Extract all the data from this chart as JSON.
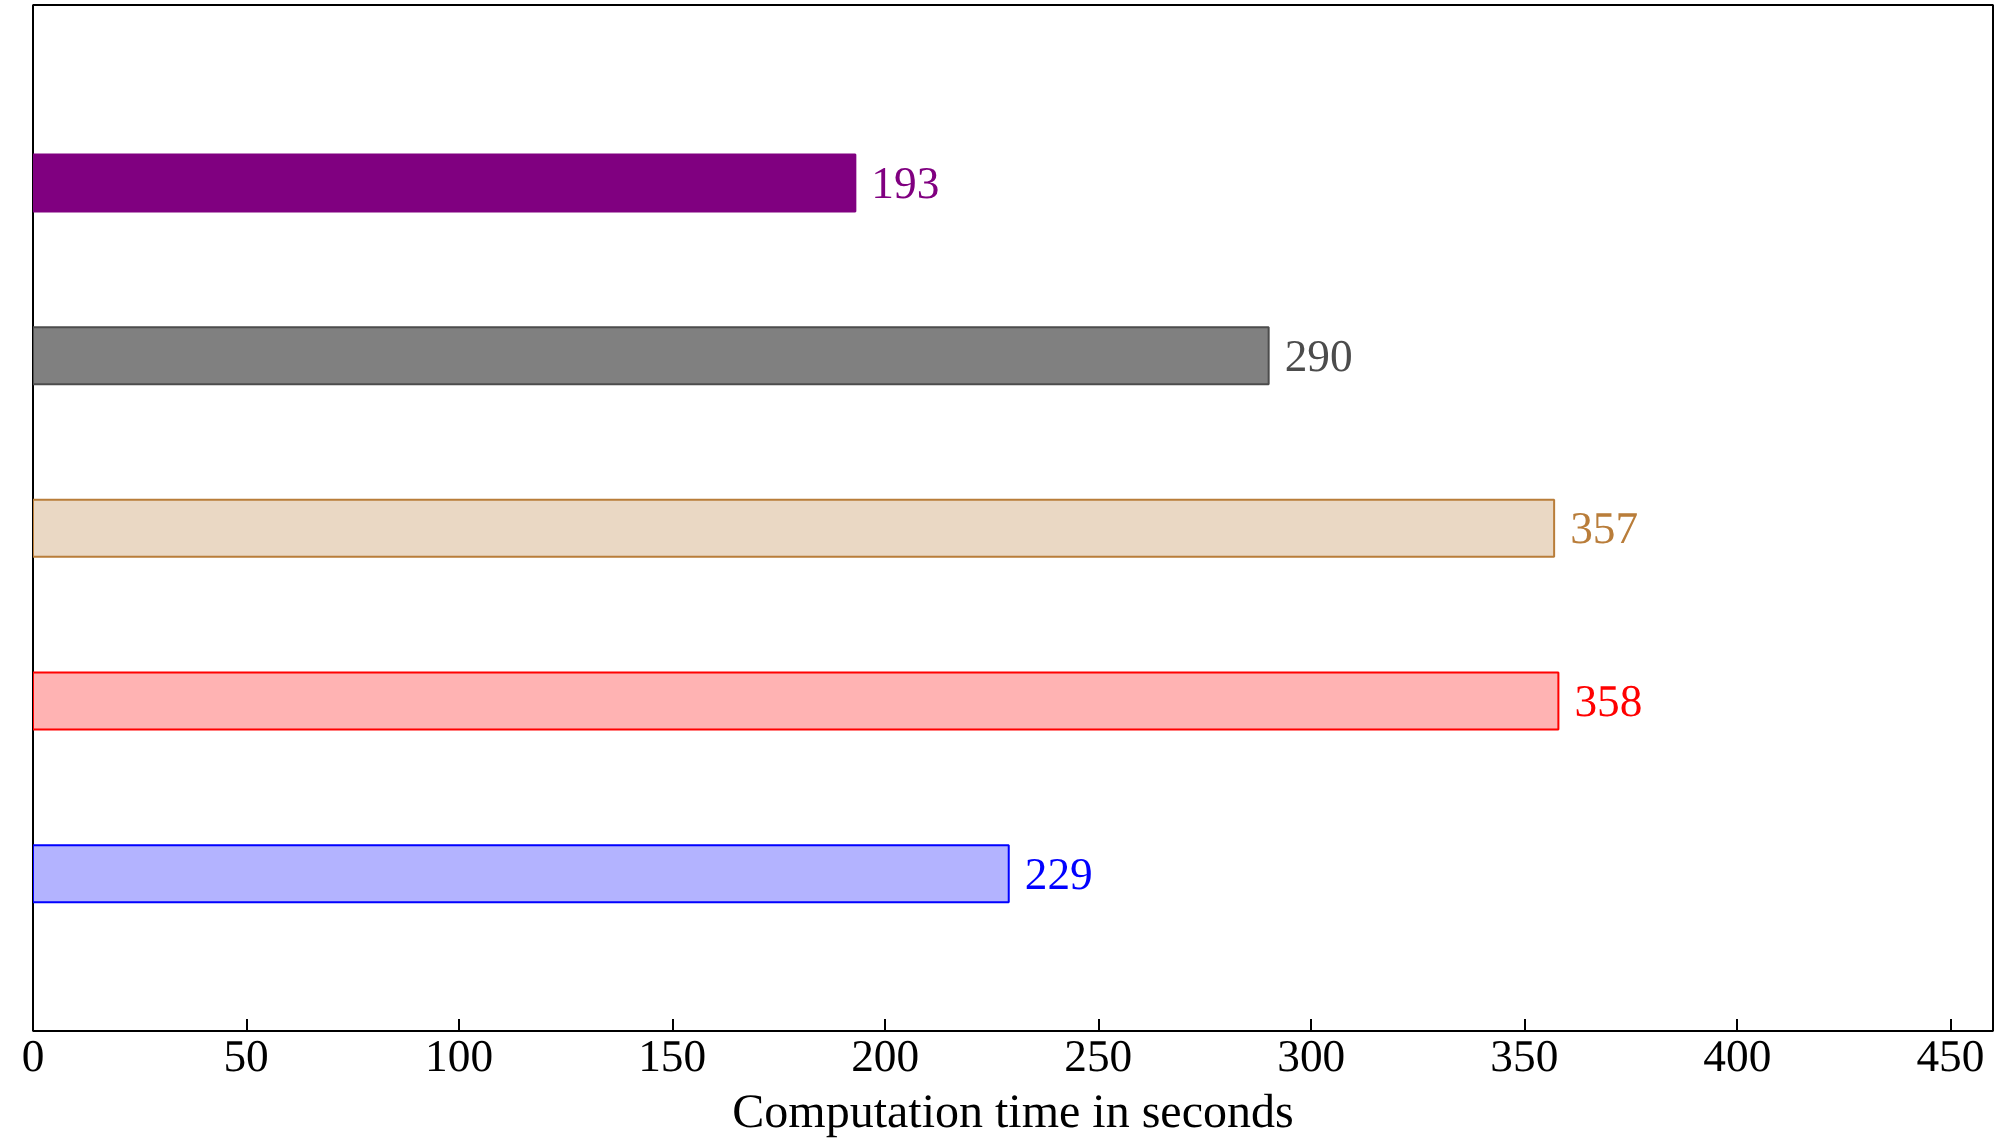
{
  "chart_data": {
    "type": "bar",
    "orientation": "horizontal",
    "xlabel": "Computation time in seconds",
    "categories": [
      null,
      null,
      null,
      null,
      null
    ],
    "values": [
      193,
      290,
      357,
      358,
      229
    ],
    "colors": [
      "#800080",
      "#808080",
      "#ead8c4",
      "#ffb3b3",
      "#b3b3ff"
    ],
    "xlim": [
      0,
      460
    ],
    "xticks": [
      0,
      50,
      100,
      150,
      200,
      250,
      300,
      350,
      400,
      450
    ],
    "data_labels": true,
    "tick_labels": "x"
  }
}
